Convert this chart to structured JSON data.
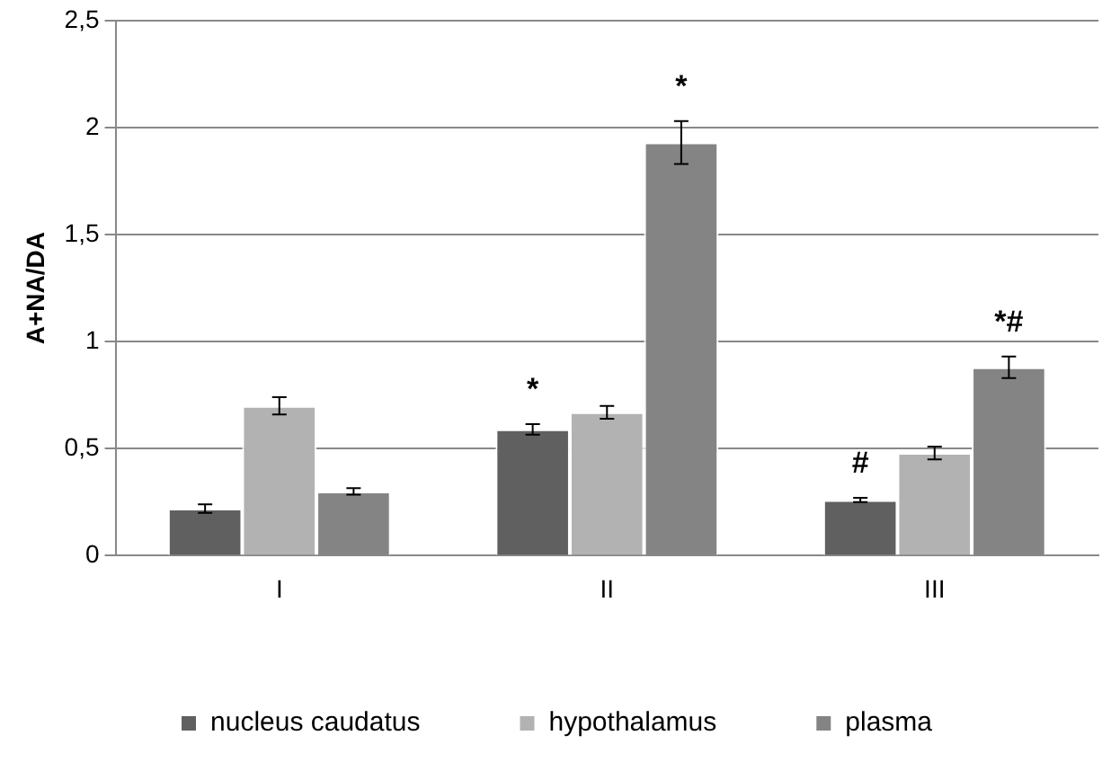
{
  "chart_data": {
    "type": "bar",
    "ylabel": "A+NA/DA",
    "categories": [
      "I",
      "II",
      "III"
    ],
    "series": [
      {
        "name": "nucleus caudatus",
        "color": "#606060",
        "values": [
          0.22,
          0.59,
          0.26
        ],
        "errors": [
          0.02,
          0.025,
          0.01
        ],
        "value_labels": [
          null,
          "*",
          "#"
        ]
      },
      {
        "name": "hypothalamus",
        "color": "#b2b2b2",
        "values": [
          0.7,
          0.67,
          0.48
        ],
        "errors": [
          0.04,
          0.03,
          0.03
        ]
      },
      {
        "name": "plasma",
        "color": "#848484",
        "values": [
          0.3,
          1.93,
          0.88
        ],
        "errors": [
          0.015,
          0.1,
          0.05
        ],
        "value_labels": [
          null,
          "*",
          "*#"
        ]
      }
    ],
    "ylim": [
      0,
      2.5
    ],
    "yticks": [
      0,
      {
        "value": 0.5,
        "label": "0,5"
      },
      1,
      {
        "value": 1.5,
        "label": "1,5"
      },
      2,
      {
        "value": 2.5,
        "label": "2,5"
      }
    ],
    "grid": "y",
    "legend": "bottom"
  }
}
